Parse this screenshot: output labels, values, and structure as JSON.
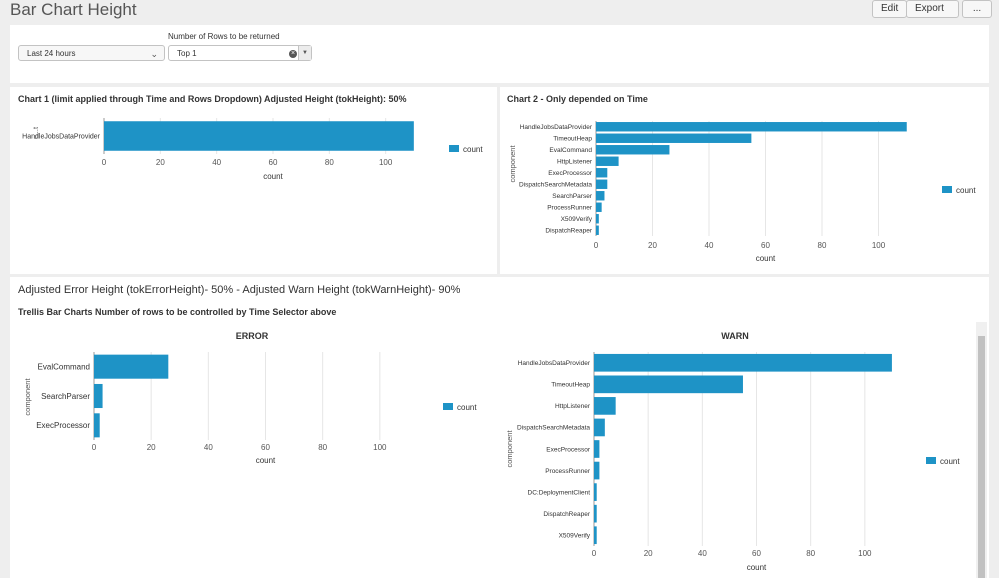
{
  "page": {
    "title": "Bar Chart Height",
    "buttons": {
      "edit": "Edit",
      "export": "Export",
      "more": "..."
    }
  },
  "inputs": {
    "time_range": {
      "value": "Last 24 hours"
    },
    "rows": {
      "label": "Number of Rows to be returned",
      "value": "Top 1"
    }
  },
  "panels": {
    "chart1_title": "Chart 1 (limit applied through Time and Rows Dropdown) Adjusted Height (tokHeight): 50%",
    "chart2_title": "Chart 2 - Only depended on Time",
    "section_title": "Adjusted Error Height (tokErrorHeight)- 50% - Adjusted Warn Height (tokWarnHeight)- 90%",
    "trellis_title": "Trellis Bar Charts Number of rows to be controlled by Time Selector above"
  },
  "colors": {
    "bar": "#1e93c6",
    "grid": "#e6e6e6",
    "axis": "#555555"
  },
  "chart_data": [
    {
      "type": "bar",
      "orientation": "horizontal",
      "categories": [
        "HandleJobsDataProvider"
      ],
      "series": [
        {
          "name": "count",
          "values": [
            110
          ]
        }
      ],
      "xlabel": "count",
      "ylabel": "c...t",
      "xticks": [
        "0",
        "20",
        "40",
        "60",
        "80",
        "100"
      ],
      "xlim": [
        0,
        120
      ],
      "legend": "right"
    },
    {
      "type": "bar",
      "orientation": "horizontal",
      "categories": [
        "HandleJobsDataProvider",
        "TimeoutHeap",
        "EvalCommand",
        "HttpListener",
        "ExecProcessor",
        "DispatchSearchMetadata",
        "SearchParser",
        "ProcessRunner",
        "X509Verify",
        "DispatchReaper"
      ],
      "series": [
        {
          "name": "count",
          "values": [
            110,
            55,
            26,
            8,
            4,
            4,
            3,
            2,
            1,
            1
          ]
        }
      ],
      "xlabel": "count",
      "ylabel": "component",
      "xticks": [
        "0",
        "20",
        "40",
        "60",
        "80",
        "100"
      ],
      "xlim": [
        0,
        120
      ],
      "legend": "right"
    },
    {
      "type": "bar",
      "orientation": "horizontal",
      "title": "ERROR",
      "categories": [
        "EvalCommand",
        "SearchParser",
        "ExecProcessor"
      ],
      "series": [
        {
          "name": "count",
          "values": [
            26,
            3,
            2
          ]
        }
      ],
      "xlabel": "count",
      "ylabel": "component",
      "xticks": [
        "0",
        "20",
        "40",
        "60",
        "80",
        "100"
      ],
      "xlim": [
        0,
        120
      ],
      "legend": "right"
    },
    {
      "type": "bar",
      "orientation": "horizontal",
      "title": "WARN",
      "categories": [
        "HandleJobsDataProvider",
        "TimeoutHeap",
        "HttpListener",
        "DispatchSearchMetadata",
        "ExecProcessor",
        "ProcessRunner",
        "DC:DeploymentClient",
        "DispatchReaper",
        "X509Verify"
      ],
      "series": [
        {
          "name": "count",
          "values": [
            110,
            55,
            8,
            4,
            2,
            2,
            1,
            1,
            1
          ]
        }
      ],
      "xlabel": "count",
      "ylabel": "component",
      "xticks": [
        "0",
        "20",
        "40",
        "60",
        "80",
        "100"
      ],
      "xlim": [
        0,
        120
      ],
      "legend": "right"
    }
  ]
}
